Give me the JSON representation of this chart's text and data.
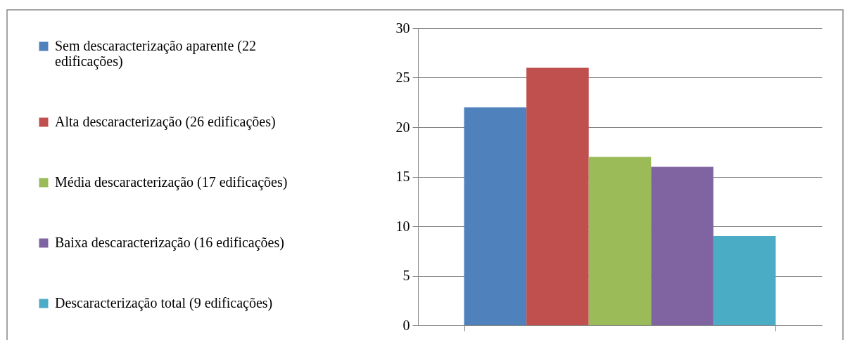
{
  "chart_data": {
    "type": "bar",
    "categories": [
      null
    ],
    "series": [
      {
        "name": "Sem descaracterização aparente (22 edificações)",
        "color": "#4f81bd",
        "values": [
          22
        ]
      },
      {
        "name": "Alta descaracterização (26 edificações)",
        "color": "#c0504d",
        "values": [
          26
        ]
      },
      {
        "name": "Média descaracterização (17 edificações)",
        "color": "#9bbb59",
        "values": [
          17
        ]
      },
      {
        "name": "Baixa descaracterização (16 edificações)",
        "color": "#8064a2",
        "values": [
          16
        ]
      },
      {
        "name": "Descaracterização total (9 edificações)",
        "color": "#4bacc6",
        "values": [
          9
        ]
      }
    ],
    "ylim": [
      0,
      30
    ],
    "yticks": [
      0,
      5,
      10,
      15,
      20,
      25,
      30
    ],
    "grid": "y",
    "legend": "left",
    "tick_labels": "y"
  }
}
